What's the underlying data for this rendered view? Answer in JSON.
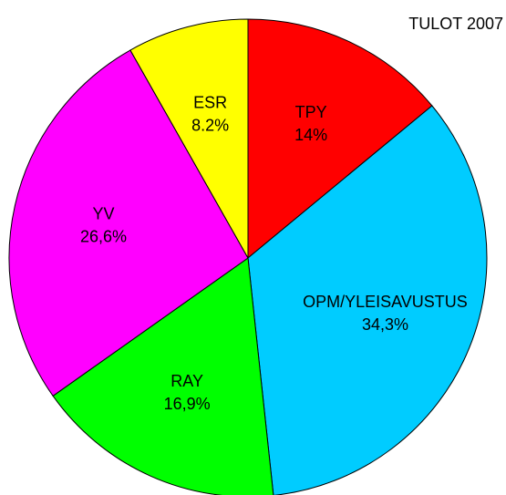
{
  "chart_data": {
    "type": "pie",
    "title": "TULOT 2007",
    "categories": [
      "TPY",
      "OPM/YLEISAVUSTUS",
      "RAY",
      "YV",
      "ESR"
    ],
    "values": [
      14,
      34.3,
      16.9,
      26.6,
      8.2
    ],
    "value_labels": [
      "14%",
      "34,3%",
      "16,9%",
      "26,6%",
      "8.2%"
    ],
    "colors": [
      "#ff0000",
      "#00ccff",
      "#00ff00",
      "#ff00ff",
      "#ffff00"
    ]
  }
}
